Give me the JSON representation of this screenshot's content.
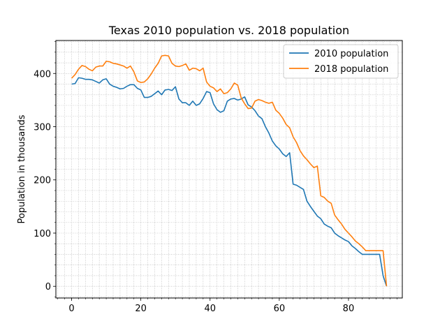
{
  "chart_data": {
    "type": "line",
    "title": "Texas 2010 population vs. 2018 population",
    "xlabel": "",
    "ylabel": "Population in thousands",
    "xlim": [
      -4.55,
      95.55
    ],
    "ylim": [
      -22,
      462
    ],
    "xticks": [
      0,
      20,
      40,
      60,
      80
    ],
    "yticks": [
      0,
      100,
      200,
      300,
      400
    ],
    "x_minor_step": 2,
    "y_minor_step": 20,
    "grid": true,
    "legend_position": "top-right",
    "x": [
      0,
      1,
      2,
      3,
      4,
      5,
      6,
      7,
      8,
      9,
      10,
      11,
      12,
      13,
      14,
      15,
      16,
      17,
      18,
      19,
      20,
      21,
      22,
      23,
      24,
      25,
      26,
      27,
      28,
      29,
      30,
      31,
      32,
      33,
      34,
      35,
      36,
      37,
      38,
      39,
      40,
      41,
      42,
      43,
      44,
      45,
      46,
      47,
      48,
      49,
      50,
      51,
      52,
      53,
      54,
      55,
      56,
      57,
      58,
      59,
      60,
      61,
      62,
      63,
      64,
      65,
      66,
      67,
      68,
      69,
      70,
      71,
      72,
      73,
      74,
      75,
      76,
      77,
      78,
      79,
      80,
      81,
      82,
      83,
      84,
      85,
      86,
      87,
      88,
      89,
      90,
      91
    ],
    "series": [
      {
        "name": "2010 population",
        "color": "#1f77b4",
        "values": [
          380,
          381,
          392,
          391,
          389,
          389,
          388,
          385,
          382,
          388,
          390,
          380,
          376,
          374,
          371,
          372,
          376,
          379,
          379,
          372,
          369,
          355,
          355,
          357,
          362,
          367,
          360,
          369,
          370,
          368,
          375,
          352,
          345,
          345,
          340,
          348,
          340,
          343,
          353,
          366,
          364,
          343,
          332,
          327,
          330,
          348,
          352,
          353,
          350,
          352,
          356,
          341,
          337,
          330,
          320,
          315,
          300,
          288,
          273,
          264,
          258,
          249,
          244,
          251,
          192,
          190,
          186,
          182,
          160,
          150,
          141,
          132,
          127,
          117,
          113,
          110,
          100,
          95,
          91,
          87,
          84,
          76,
          71,
          65,
          60,
          60,
          60,
          60,
          60,
          60,
          20,
          0
        ]
      },
      {
        "name": "2018 population",
        "color": "#ff7f0e",
        "values": [
          391,
          398,
          408,
          415,
          413,
          408,
          405,
          412,
          414,
          414,
          423,
          422,
          419,
          418,
          416,
          414,
          410,
          414,
          403,
          386,
          383,
          384,
          390,
          399,
          410,
          419,
          433,
          434,
          433,
          419,
          414,
          413,
          415,
          418,
          406,
          410,
          409,
          405,
          410,
          384,
          376,
          373,
          366,
          371,
          362,
          364,
          371,
          382,
          378,
          354,
          343,
          334,
          335,
          348,
          351,
          349,
          346,
          344,
          346,
          331,
          325,
          316,
          304,
          298,
          281,
          270,
          255,
          245,
          238,
          230,
          223,
          226,
          170,
          167,
          160,
          156,
          134,
          125,
          117,
          107,
          100,
          93,
          85,
          80,
          74,
          67,
          67,
          67,
          67,
          67,
          67,
          0
        ]
      }
    ]
  }
}
